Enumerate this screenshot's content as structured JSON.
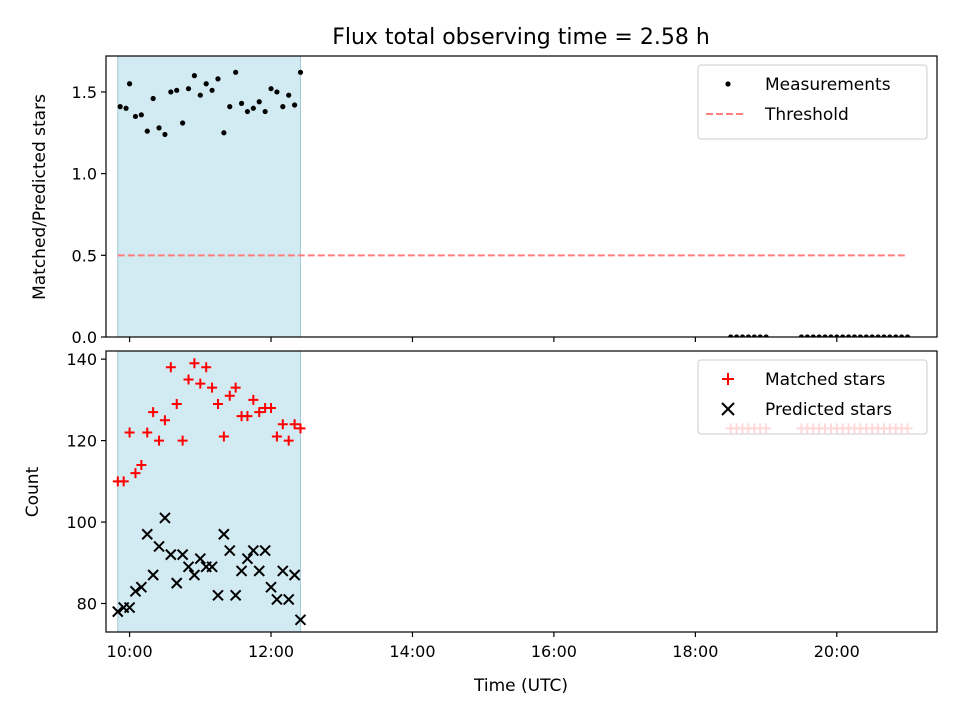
{
  "title": "Flux total observing time = 2.58 h",
  "chart_data": [
    {
      "type": "scatter",
      "panel": "top",
      "ylabel": "Matched/Predicted stars",
      "xlabel": "",
      "xlim": [
        "09:40",
        "21:25"
      ],
      "ylim": [
        0,
        1.72
      ],
      "yticks": [
        0,
        0.5,
        1.0,
        1.5
      ],
      "ytick_labels": [
        "0.0",
        "0.5",
        "1.0",
        "1.5"
      ],
      "shaded_window": [
        "09:50",
        "12:25"
      ],
      "shade_color": "#add8e6",
      "legend_position": "top-right",
      "series": [
        {
          "name": "Measurements",
          "marker": "dot",
          "color": "#000000",
          "points": [
            [
              "09:52",
              1.41
            ],
            [
              "09:57",
              1.4
            ],
            [
              "10:00",
              1.55
            ],
            [
              "10:05",
              1.35
            ],
            [
              "10:10",
              1.36
            ],
            [
              "10:15",
              1.26
            ],
            [
              "10:20",
              1.46
            ],
            [
              "10:25",
              1.28
            ],
            [
              "10:30",
              1.24
            ],
            [
              "10:35",
              1.5
            ],
            [
              "10:40",
              1.51
            ],
            [
              "10:45",
              1.31
            ],
            [
              "10:50",
              1.52
            ],
            [
              "10:55",
              1.6
            ],
            [
              "11:00",
              1.48
            ],
            [
              "11:05",
              1.55
            ],
            [
              "11:10",
              1.51
            ],
            [
              "11:15",
              1.58
            ],
            [
              "11:20",
              1.25
            ],
            [
              "11:25",
              1.41
            ],
            [
              "11:30",
              1.62
            ],
            [
              "11:35",
              1.43
            ],
            [
              "11:40",
              1.38
            ],
            [
              "11:45",
              1.4
            ],
            [
              "11:50",
              1.44
            ],
            [
              "11:55",
              1.38
            ],
            [
              "12:00",
              1.52
            ],
            [
              "12:05",
              1.5
            ],
            [
              "12:10",
              1.41
            ],
            [
              "12:15",
              1.48
            ],
            [
              "12:20",
              1.42
            ],
            [
              "12:25",
              1.62
            ],
            [
              "18:30",
              0
            ],
            [
              "18:35",
              0
            ],
            [
              "18:40",
              0
            ],
            [
              "18:45",
              0
            ],
            [
              "18:50",
              0
            ],
            [
              "18:55",
              0
            ],
            [
              "19:00",
              0
            ],
            [
              "19:30",
              0
            ],
            [
              "19:35",
              0
            ],
            [
              "19:40",
              0
            ],
            [
              "19:45",
              0
            ],
            [
              "19:50",
              0
            ],
            [
              "19:55",
              0
            ],
            [
              "20:00",
              0
            ],
            [
              "20:05",
              0
            ],
            [
              "20:10",
              0
            ],
            [
              "20:15",
              0
            ],
            [
              "20:20",
              0
            ],
            [
              "20:25",
              0
            ],
            [
              "20:30",
              0
            ],
            [
              "20:35",
              0
            ],
            [
              "20:40",
              0
            ],
            [
              "20:45",
              0
            ],
            [
              "20:50",
              0
            ],
            [
              "20:55",
              0
            ],
            [
              "21:00",
              0
            ]
          ]
        },
        {
          "name": "Threshold",
          "marker": "dashed-line",
          "color": "#ff7f7f",
          "points": [
            [
              "09:50",
              0.5
            ],
            [
              "21:00",
              0.5
            ]
          ]
        }
      ]
    },
    {
      "type": "scatter",
      "panel": "bottom",
      "ylabel": "Count",
      "xlabel": "Time (UTC)",
      "xlim": [
        "09:40",
        "21:25"
      ],
      "ylim": [
        73,
        142
      ],
      "yticks": [
        80,
        100,
        120,
        140
      ],
      "ytick_labels": [
        "80",
        "100",
        "120",
        "140"
      ],
      "xticks": [
        "10:00",
        "12:00",
        "14:00",
        "16:00",
        "18:00",
        "20:00"
      ],
      "shaded_window": [
        "09:50",
        "12:25"
      ],
      "shade_color": "#add8e6",
      "legend_position": "top-right",
      "series": [
        {
          "name": "Matched stars",
          "marker": "plus",
          "color": "#ff0000",
          "points": [
            [
              "09:50",
              110
            ],
            [
              "09:55",
              110
            ],
            [
              "10:00",
              122
            ],
            [
              "10:05",
              112
            ],
            [
              "10:10",
              114
            ],
            [
              "10:15",
              122
            ],
            [
              "10:20",
              127
            ],
            [
              "10:25",
              120
            ],
            [
              "10:30",
              125
            ],
            [
              "10:35",
              138
            ],
            [
              "10:40",
              129
            ],
            [
              "10:45",
              120
            ],
            [
              "10:50",
              135
            ],
            [
              "10:55",
              139
            ],
            [
              "11:00",
              134
            ],
            [
              "11:05",
              138
            ],
            [
              "11:10",
              133
            ],
            [
              "11:15",
              129
            ],
            [
              "11:20",
              121
            ],
            [
              "11:25",
              131
            ],
            [
              "11:30",
              133
            ],
            [
              "11:35",
              126
            ],
            [
              "11:40",
              126
            ],
            [
              "11:45",
              130
            ],
            [
              "11:50",
              127
            ],
            [
              "11:55",
              128
            ],
            [
              "12:00",
              128
            ],
            [
              "12:05",
              121
            ],
            [
              "12:10",
              124
            ],
            [
              "12:15",
              120
            ],
            [
              "12:20",
              124
            ],
            [
              "12:25",
              123
            ],
            [
              "18:30",
              123
            ],
            [
              "18:35",
              123
            ],
            [
              "18:40",
              123
            ],
            [
              "18:45",
              123
            ],
            [
              "18:50",
              123
            ],
            [
              "18:55",
              123
            ],
            [
              "19:00",
              123
            ],
            [
              "19:30",
              123
            ],
            [
              "19:35",
              123
            ],
            [
              "19:40",
              123
            ],
            [
              "19:45",
              123
            ],
            [
              "19:50",
              123
            ],
            [
              "19:55",
              123
            ],
            [
              "20:00",
              123
            ],
            [
              "20:05",
              123
            ],
            [
              "20:10",
              123
            ],
            [
              "20:15",
              123
            ],
            [
              "20:20",
              123
            ],
            [
              "20:25",
              123
            ],
            [
              "20:30",
              123
            ],
            [
              "20:35",
              123
            ],
            [
              "20:40",
              123
            ],
            [
              "20:45",
              123
            ],
            [
              "20:50",
              123
            ],
            [
              "20:55",
              123
            ],
            [
              "21:00",
              123
            ]
          ]
        },
        {
          "name": "Predicted stars",
          "marker": "x",
          "color": "#000000",
          "points": [
            [
              "09:50",
              78
            ],
            [
              "09:55",
              79
            ],
            [
              "10:00",
              79
            ],
            [
              "10:05",
              83
            ],
            [
              "10:10",
              84
            ],
            [
              "10:15",
              97
            ],
            [
              "10:20",
              87
            ],
            [
              "10:25",
              94
            ],
            [
              "10:30",
              101
            ],
            [
              "10:35",
              92
            ],
            [
              "10:40",
              85
            ],
            [
              "10:45",
              92
            ],
            [
              "10:50",
              89
            ],
            [
              "10:55",
              87
            ],
            [
              "11:00",
              91
            ],
            [
              "11:05",
              89
            ],
            [
              "11:10",
              89
            ],
            [
              "11:15",
              82
            ],
            [
              "11:20",
              97
            ],
            [
              "11:25",
              93
            ],
            [
              "11:30",
              82
            ],
            [
              "11:35",
              88
            ],
            [
              "11:40",
              91
            ],
            [
              "11:45",
              93
            ],
            [
              "11:50",
              88
            ],
            [
              "11:55",
              93
            ],
            [
              "12:00",
              84
            ],
            [
              "12:05",
              81
            ],
            [
              "12:10",
              88
            ],
            [
              "12:15",
              81
            ],
            [
              "12:20",
              87
            ],
            [
              "12:25",
              76
            ]
          ]
        }
      ]
    }
  ]
}
